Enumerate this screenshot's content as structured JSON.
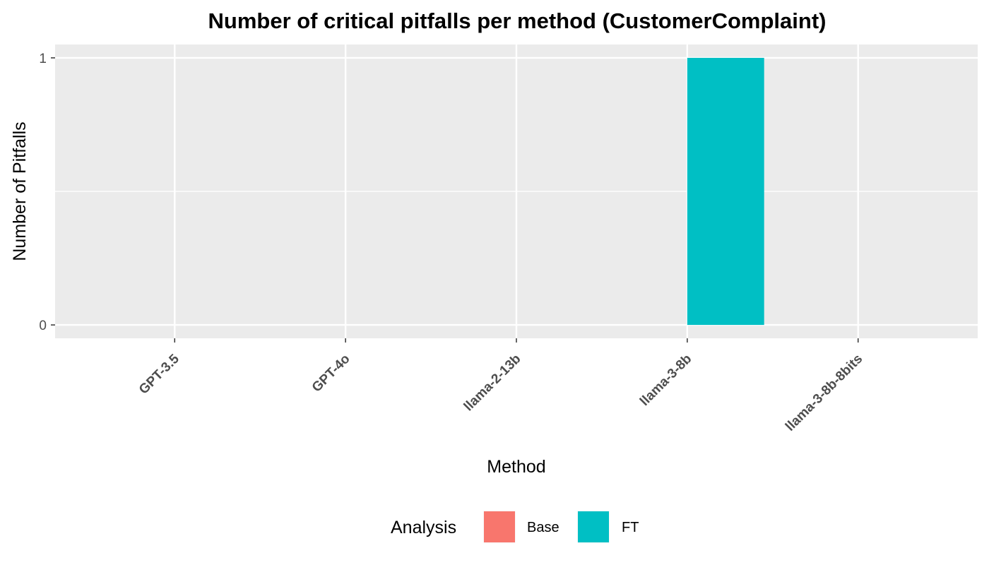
{
  "chart_data": {
    "type": "bar",
    "title": "Number of critical pitfalls per method (CustomerComplaint)",
    "xlabel": "Method",
    "ylabel": "Number of Pitfalls",
    "categories": [
      "GPT-3.5",
      "GPT-4o",
      "llama-2-13b",
      "llama-3-8b",
      "llama-3-8b-8bits"
    ],
    "series": [
      {
        "name": "Base",
        "color": "#F8766D",
        "values": [
          0,
          0,
          0,
          0,
          0
        ]
      },
      {
        "name": "FT",
        "color": "#00BFC4",
        "values": [
          0,
          0,
          0,
          1,
          0
        ]
      }
    ],
    "yticks": [
      "0",
      "1"
    ],
    "ylim": [
      -0.05,
      1.05
    ],
    "grid": true,
    "legend": {
      "title": "Analysis",
      "position": "bottom",
      "entries": [
        "Base",
        "FT"
      ]
    },
    "panel_background": "#EBEBEB"
  }
}
